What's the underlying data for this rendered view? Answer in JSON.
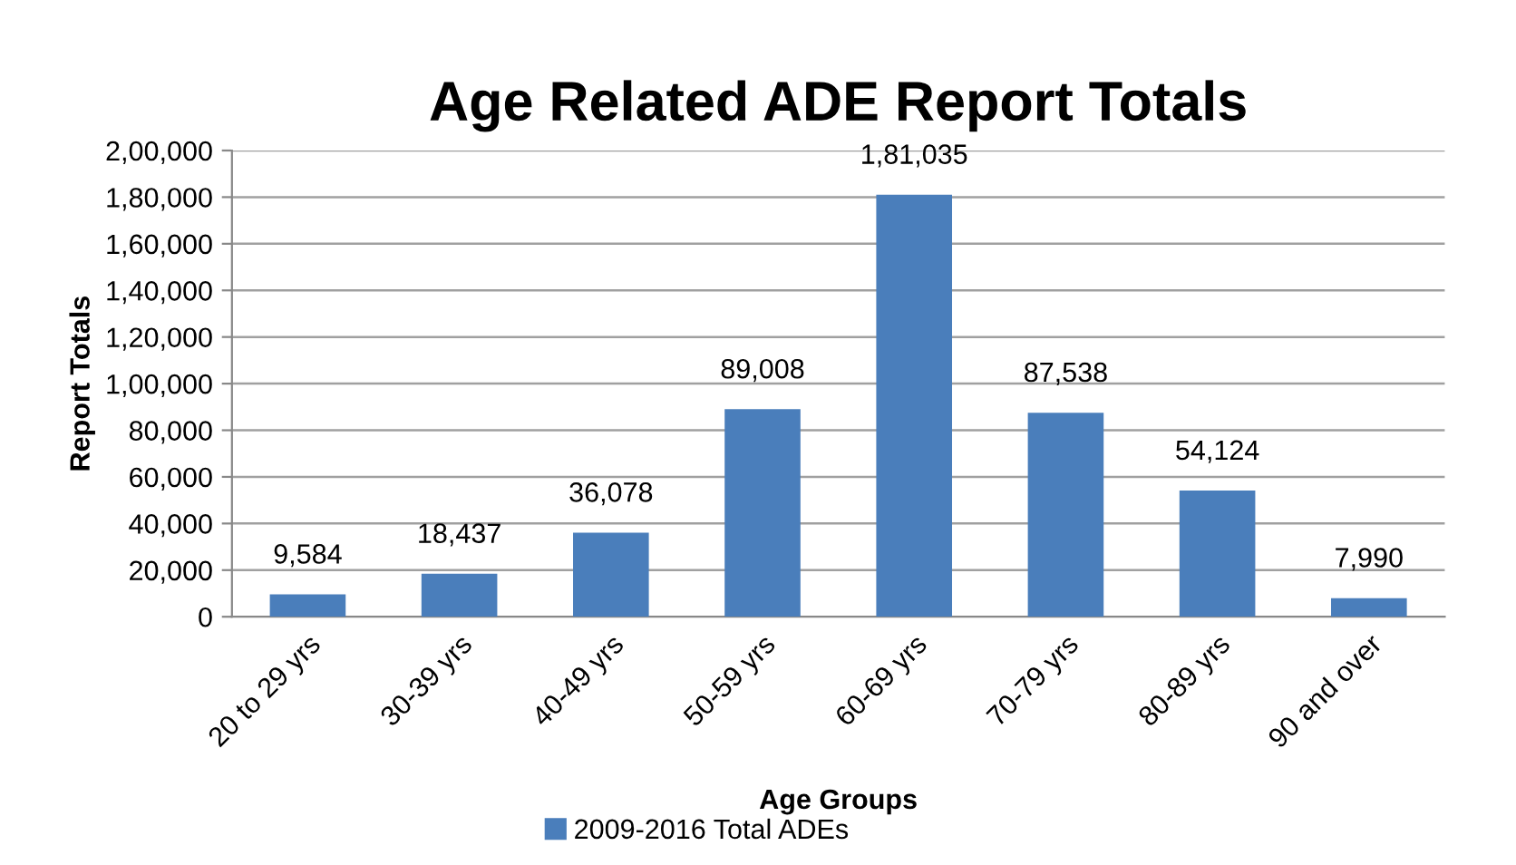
{
  "chart_data": {
    "type": "bar",
    "title": "Age Related ADE Report Totals",
    "xlabel": "Age Groups",
    "ylabel": "Report Totals",
    "categories": [
      "20 to 29 yrs",
      "30-39 yrs",
      "40-49 yrs",
      "50-59 yrs",
      "60-69 yrs",
      "70-79 yrs",
      "80-89 yrs",
      "90 and over"
    ],
    "series": [
      {
        "name": "2009-2016 Total ADEs",
        "color": "#4a7ebb",
        "values": [
          9584,
          18437,
          36078,
          89008,
          181035,
          87538,
          54124,
          7990
        ],
        "value_labels": [
          "9,584",
          "18,437",
          "36,078",
          "89,008",
          "1,81,035",
          "87,538",
          "54,124",
          "7,990"
        ]
      }
    ],
    "ylim": [
      0,
      200000
    ],
    "yticks": [
      {
        "value": 0,
        "label": "0"
      },
      {
        "value": 20000,
        "label": "20,000"
      },
      {
        "value": 40000,
        "label": "40,000"
      },
      {
        "value": 60000,
        "label": "60,000"
      },
      {
        "value": 80000,
        "label": "80,000"
      },
      {
        "value": 100000,
        "label": "1,00,000"
      },
      {
        "value": 120000,
        "label": "1,20,000"
      },
      {
        "value": 140000,
        "label": "1,40,000"
      },
      {
        "value": 160000,
        "label": "1,60,000"
      },
      {
        "value": 180000,
        "label": "1,80,000"
      },
      {
        "value": 200000,
        "label": "2,00,000"
      }
    ],
    "grid": "y",
    "legend": "bottom"
  }
}
